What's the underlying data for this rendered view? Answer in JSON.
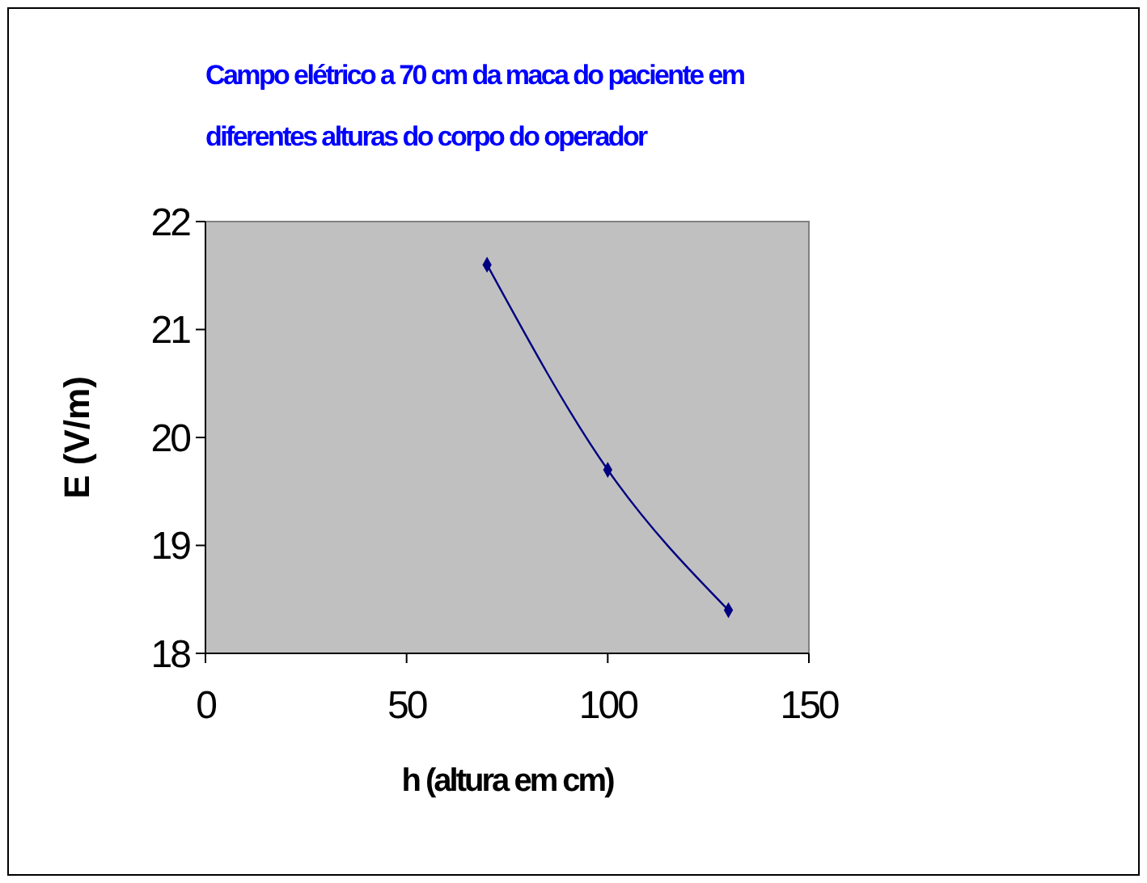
{
  "chart_data": {
    "type": "line",
    "title": "Campo elétrico a 70 cm da maca do paciente em diferentes alturas do corpo do operador",
    "xlabel": "h (altura em cm)",
    "ylabel": "E (V/m)",
    "x": [
      70,
      100,
      130
    ],
    "series": [
      {
        "color": "#000080",
        "values": [
          21.6,
          19.7,
          18.4
        ]
      }
    ],
    "xlim": [
      0,
      150
    ],
    "xticks": [
      0,
      50,
      100,
      150
    ],
    "ylim": [
      18,
      22
    ],
    "yticks": [
      18,
      19,
      20,
      21,
      22
    ],
    "grid": false,
    "marker": "diamond",
    "line_style": "solid"
  }
}
